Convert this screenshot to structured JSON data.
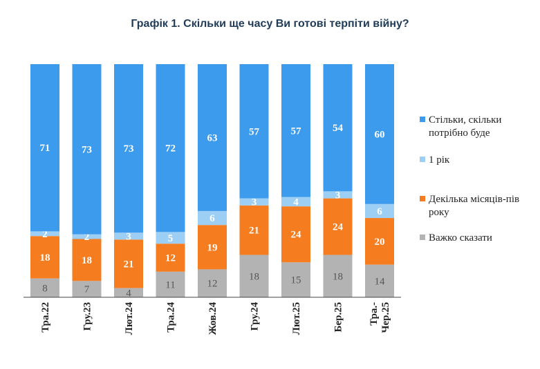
{
  "chart_data": {
    "type": "bar",
    "stacked": true,
    "title": "Графік 1. Скільки ще часу Ви готові терпіти війну?",
    "categories": [
      "Тра.22",
      "Гру.23",
      "Лют.24",
      "Тра.24",
      "Жов.24",
      "Гру.24",
      "Лют.25",
      "Бер.25",
      "Тра.-Чер.25"
    ],
    "category_lines": [
      [
        "Тра.22"
      ],
      [
        "Гру.23"
      ],
      [
        "Лют.24"
      ],
      [
        "Тра.24"
      ],
      [
        "Жов.24"
      ],
      [
        "Гру.24"
      ],
      [
        "Лют.25"
      ],
      [
        "Бер.25"
      ],
      [
        "Тра.-",
        "Чер.25"
      ]
    ],
    "series": [
      {
        "name": "Важко сказати",
        "color": "#b3b3b3",
        "label_color": "#555555",
        "values": [
          8,
          7,
          4,
          11,
          12,
          18,
          15,
          18,
          14
        ]
      },
      {
        "name": "Декілька місяців-пів року",
        "color": "#f57c1f",
        "label_color": "#ffffff",
        "values": [
          18,
          18,
          21,
          12,
          19,
          21,
          24,
          24,
          20
        ]
      },
      {
        "name": "1 рік",
        "color": "#9dcff5",
        "label_color": "#ffffff",
        "values": [
          2,
          2,
          3,
          5,
          6,
          3,
          4,
          3,
          6
        ]
      },
      {
        "name": "Стільки, скільки потрібно буде",
        "color": "#3d9bed",
        "label_color": "#ffffff",
        "values": [
          71,
          73,
          73,
          72,
          63,
          57,
          57,
          54,
          60
        ]
      }
    ],
    "legend": {
      "position": "right",
      "entries": [
        {
          "lines": [
            "Стільки, скільки",
            "потрібно буде"
          ],
          "color": "#3d9bed"
        },
        {
          "lines": [
            "1 рік"
          ],
          "color": "#9dcff5"
        },
        {
          "lines": [
            "Декілька місяців-пів",
            "року"
          ],
          "color": "#f57c1f"
        },
        {
          "lines": [
            "Важко сказати"
          ],
          "color": "#b3b3b3"
        }
      ]
    },
    "ylim": [
      0,
      100
    ],
    "grid": false
  }
}
